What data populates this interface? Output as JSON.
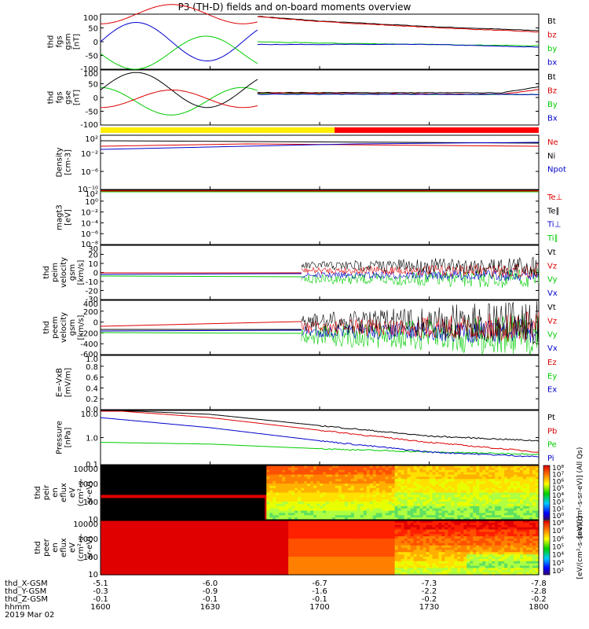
{
  "title": "P3 (TH-D) fields and on-board moments overview",
  "colors": {
    "black": "#000000",
    "red": "#dd0000",
    "green": "#00cc00",
    "blue": "#0000cc",
    "yellow": "#ffee00",
    "barred": "#ff0000"
  },
  "status_bar": {
    "segments": [
      {
        "color": "yellow",
        "to_hhmm": "1655"
      },
      {
        "color": "red",
        "to_hhmm": "1800"
      }
    ]
  },
  "panels": [
    {
      "id": "fgs-gsm",
      "ylabel": [
        "thd",
        "fgs",
        "gsm",
        "[nT]"
      ],
      "ylim": [
        -100,
        100
      ],
      "yticks": [
        "100",
        "50",
        "0",
        "-50",
        "-100"
      ],
      "legend": [
        {
          "text": "Bt",
          "color": "black"
        },
        {
          "text": "bz",
          "color": "red"
        },
        {
          "text": "by",
          "color": "green"
        },
        {
          "text": "bx",
          "color": "blue"
        }
      ]
    },
    {
      "id": "fgs-gse",
      "ylabel": [
        "thd",
        "fgs",
        "gse",
        "[nT]"
      ],
      "ylim": [
        -120,
        100
      ],
      "yticks": [
        "100",
        "50",
        "0",
        "-50",
        "-100"
      ],
      "legend": [
        {
          "text": "Bt",
          "color": "black"
        },
        {
          "text": "Bz",
          "color": "red"
        },
        {
          "text": "By",
          "color": "green"
        },
        {
          "text": "Bx",
          "color": "blue"
        }
      ]
    },
    {
      "id": "density",
      "ylabel": [
        "Density",
        "[cm-3]"
      ],
      "yticks": [
        "10²",
        "10⁻²",
        "10⁻⁶",
        "10⁻¹⁰"
      ],
      "legend": [
        {
          "text": "Ne",
          "color": "red"
        },
        {
          "text": "Ni",
          "color": "black"
        },
        {
          "text": "Npot",
          "color": "blue"
        }
      ]
    },
    {
      "id": "temperature",
      "ylabel": [
        "magt3",
        "[eV]"
      ],
      "yticks": [
        "10²",
        "10⁰",
        "10⁻²",
        "10⁻⁴",
        "10⁻⁶",
        "10⁻⁸"
      ],
      "legend": [
        {
          "text": "Te⊥",
          "color": "red"
        },
        {
          "text": "Te∥",
          "color": "black"
        },
        {
          "text": "Ti⊥",
          "color": "blue"
        },
        {
          "text": "Ti∥",
          "color": "green"
        }
      ]
    },
    {
      "id": "peim-velocity",
      "ylabel": [
        "thd",
        "peim",
        "velocity",
        "gsm",
        "[km/s]"
      ],
      "ylim": [
        -30,
        30
      ],
      "yticks": [
        "30",
        "20",
        "10",
        "0",
        "-10",
        "-20",
        "-30"
      ],
      "legend": [
        {
          "text": "Vt",
          "color": "black"
        },
        {
          "text": "Vz",
          "color": "red"
        },
        {
          "text": "Vy",
          "color": "green"
        },
        {
          "text": "Vx",
          "color": "blue"
        }
      ]
    },
    {
      "id": "peem-velocity",
      "ylabel": [
        "thd",
        "peem",
        "velocity",
        "gsm",
        "[km/s]"
      ],
      "ylim": [
        -600,
        400
      ],
      "yticks": [
        "400",
        "200",
        "0",
        "-200",
        "-400",
        "-600"
      ],
      "legend": [
        {
          "text": "Vt",
          "color": "black"
        },
        {
          "text": "Vz",
          "color": "red"
        },
        {
          "text": "Vy",
          "color": "green"
        },
        {
          "text": "Vx",
          "color": "blue"
        }
      ]
    },
    {
      "id": "efield",
      "ylabel": [
        "E=-VxB",
        "[mV/m]"
      ],
      "ylim": [
        0,
        1
      ],
      "yticks": [
        "1.0",
        "0.8",
        "0.6",
        "0.4",
        "0.2",
        "0.0"
      ],
      "legend": [
        {
          "text": "Ez",
          "color": "red"
        },
        {
          "text": "Ey",
          "color": "green"
        },
        {
          "text": "Ex",
          "color": "blue"
        }
      ]
    },
    {
      "id": "pressure",
      "ylabel": [
        "Pressure",
        "[nPa]"
      ],
      "yticks": [
        "10.0",
        "1.0",
        "0.1"
      ],
      "legend": [
        {
          "text": "Pt",
          "color": "black"
        },
        {
          "text": "Pb",
          "color": "red"
        },
        {
          "text": "Pe",
          "color": "green"
        },
        {
          "text": "Pi",
          "color": "blue"
        }
      ]
    },
    {
      "id": "peir-eflux",
      "ylabel": [
        "thd",
        "peir",
        "en",
        "eflux",
        "eV",
        "(cm²-s-",
        "sr-eV)"
      ],
      "yticks": [
        "10000",
        "1000",
        "100",
        "10"
      ]
    },
    {
      "id": "peer-eflux",
      "ylabel": [
        "thd",
        "peer",
        "en",
        "eflux",
        "eV",
        "(cm²-s-",
        "sr-eV)"
      ],
      "yticks": [
        "10000",
        "1000",
        "100",
        "10"
      ]
    }
  ],
  "colorbar_top": {
    "ticks": [
      "10⁸",
      "10⁷",
      "10⁶",
      "10⁵",
      "10⁴",
      "10³",
      "10²",
      "10⁰"
    ],
    "label": "[eV/(cm²-s-sr-eV)] (All Qs)"
  },
  "colorbar_bottom": {
    "ticks": [
      "10⁸",
      "10⁷",
      "10⁶",
      "10⁵",
      "10⁴",
      "10³",
      "10²"
    ],
    "label": "[eV/(cm²-s-sr-eV)]"
  },
  "footer": {
    "labels": [
      "thd_X-GSM",
      "thd_Y-GSM",
      "thd_Z-GSM",
      "hhmm",
      "2019 Mar 02"
    ],
    "columns": [
      {
        "x": "-5.1",
        "y": "-0.3",
        "z": "-0.1",
        "t": "1600"
      },
      {
        "x": "-6.0",
        "y": "-0.9",
        "z": "-0.1",
        "t": "1630"
      },
      {
        "x": "-6.7",
        "y": "-1.6",
        "z": "-0.1",
        "t": "1700"
      },
      {
        "x": "-7.3",
        "y": "-2.2",
        "z": "-0.2",
        "t": "1730"
      },
      {
        "x": "-7.8",
        "y": "-2.8",
        "z": "-0.2",
        "t": "1800"
      }
    ]
  },
  "chart_data": {
    "type": "line",
    "title": "P3 (TH-D) fields and on-board moments overview",
    "x_axis": {
      "label": "hhmm",
      "ticks": [
        "1600",
        "1630",
        "1700",
        "1730",
        "1800"
      ]
    },
    "series_fgs_gsm": [
      {
        "name": "Bt",
        "hhmm": [
          "1600",
          "1630",
          "1640",
          "1700",
          "1730",
          "1800"
        ],
        "values": [
          100,
          100,
          95,
          75,
          55,
          40
        ]
      },
      {
        "name": "bz",
        "hhmm": [
          "1600",
          "1630",
          "1640",
          "1700",
          "1730",
          "1800"
        ],
        "values": [
          100,
          100,
          94,
          73,
          52,
          35
        ]
      },
      {
        "name": "by",
        "hhmm": [
          "1640",
          "1700",
          "1730",
          "1800"
        ],
        "values": [
          0,
          -5,
          -10,
          -15
        ]
      },
      {
        "name": "bx",
        "hhmm": [
          "1640",
          "1700",
          "1730",
          "1800"
        ],
        "values": [
          -10,
          -10,
          -10,
          -20
        ]
      }
    ],
    "series_pressure": [
      {
        "name": "Pt",
        "hhmm": [
          "1600",
          "1630",
          "1700",
          "1730",
          "1800"
        ],
        "values": [
          12,
          8,
          3,
          1.2,
          0.8
        ]
      },
      {
        "name": "Pb",
        "hhmm": [
          "1600",
          "1630",
          "1700",
          "1730",
          "1800"
        ],
        "values": [
          12,
          6,
          2,
          0.7,
          0.3
        ]
      },
      {
        "name": "Pe",
        "hhmm": [
          "1600",
          "1630",
          "1700",
          "1730",
          "1800"
        ],
        "values": [
          0.7,
          0.6,
          0.4,
          0.3,
          0.25
        ]
      },
      {
        "name": "Pi",
        "hhmm": [
          "1600",
          "1630",
          "1700",
          "1730",
          "1800"
        ],
        "values": [
          6,
          2.5,
          0.8,
          0.3,
          0.2
        ]
      }
    ]
  }
}
